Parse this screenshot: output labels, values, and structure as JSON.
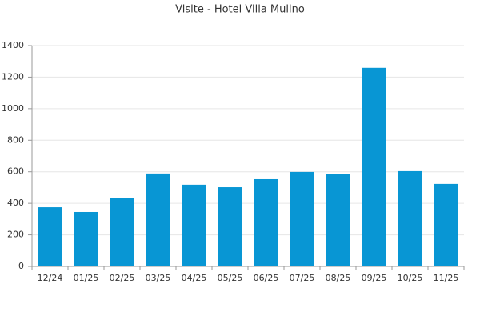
{
  "chart_data": {
    "type": "bar",
    "title": "Visite - Hotel Villa Mulino",
    "categories": [
      "12/24",
      "01/25",
      "02/25",
      "03/25",
      "04/25",
      "05/25",
      "06/25",
      "07/25",
      "08/25",
      "09/25",
      "10/25",
      "11/25"
    ],
    "values": [
      375,
      345,
      436,
      589,
      518,
      502,
      553,
      599,
      584,
      1259,
      604,
      523
    ],
    "color": "#0896d4",
    "ylim": [
      0,
      1400
    ],
    "yticks": [
      0,
      200,
      400,
      600,
      800,
      1000,
      1200,
      1400
    ],
    "grid": true
  }
}
